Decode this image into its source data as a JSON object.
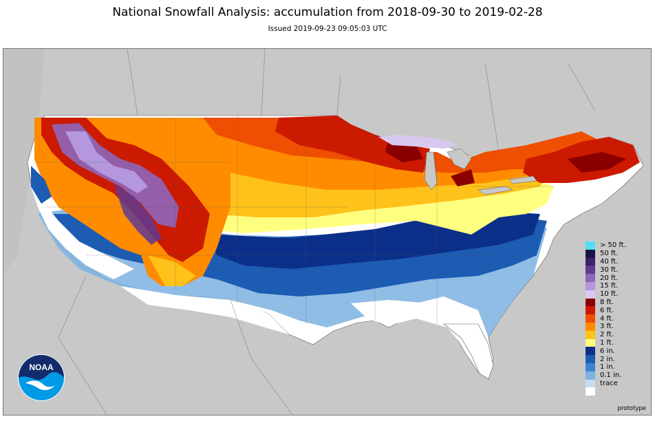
{
  "header": {
    "title": "National Snowfall Analysis: accumulation from 2018-09-30 to 2019-02-28",
    "issued": "Issued 2019-09-23 09:05:03 UTC"
  },
  "logo": {
    "text": "NOAA"
  },
  "footer": {
    "prototype_label": "prototype"
  },
  "colors": {
    "land_background": "#c8c8c8",
    "no_snow": "#ffffff",
    "water_lake": "#c8c8c8"
  },
  "legend": {
    "items": [
      {
        "label": "> 50 ft.",
        "color": "#55dcf0"
      },
      {
        "label": "50 ft.",
        "color": "#1b1244"
      },
      {
        "label": "40 ft.",
        "color": "#3d1f6e"
      },
      {
        "label": "30 ft.",
        "color": "#5e3a92"
      },
      {
        "label": "20 ft.",
        "color": "#8e66bb"
      },
      {
        "label": "15 ft.",
        "color": "#b497dd"
      },
      {
        "label": "10 ft.",
        "color": "#d8c8ef"
      },
      {
        "label": "8 ft.",
        "color": "#8a0000"
      },
      {
        "label": "6 ft.",
        "color": "#cc1a00"
      },
      {
        "label": "4 ft.",
        "color": "#ee4f00"
      },
      {
        "label": "3 ft.",
        "color": "#ff8c00"
      },
      {
        "label": "2 ft.",
        "color": "#ffc21a"
      },
      {
        "label": "1 ft.",
        "color": "#ffff7f"
      },
      {
        "label": "6 in.",
        "color": "#0c2f8a"
      },
      {
        "label": "2 in.",
        "color": "#1d5cb3"
      },
      {
        "label": "1 in.",
        "color": "#3a85cc"
      },
      {
        "label": "0.1 in.",
        "color": "#7cb1e0"
      },
      {
        "label": "trace",
        "color": "#c8dcef"
      },
      {
        "label": "",
        "color": "#ffffff"
      }
    ]
  }
}
